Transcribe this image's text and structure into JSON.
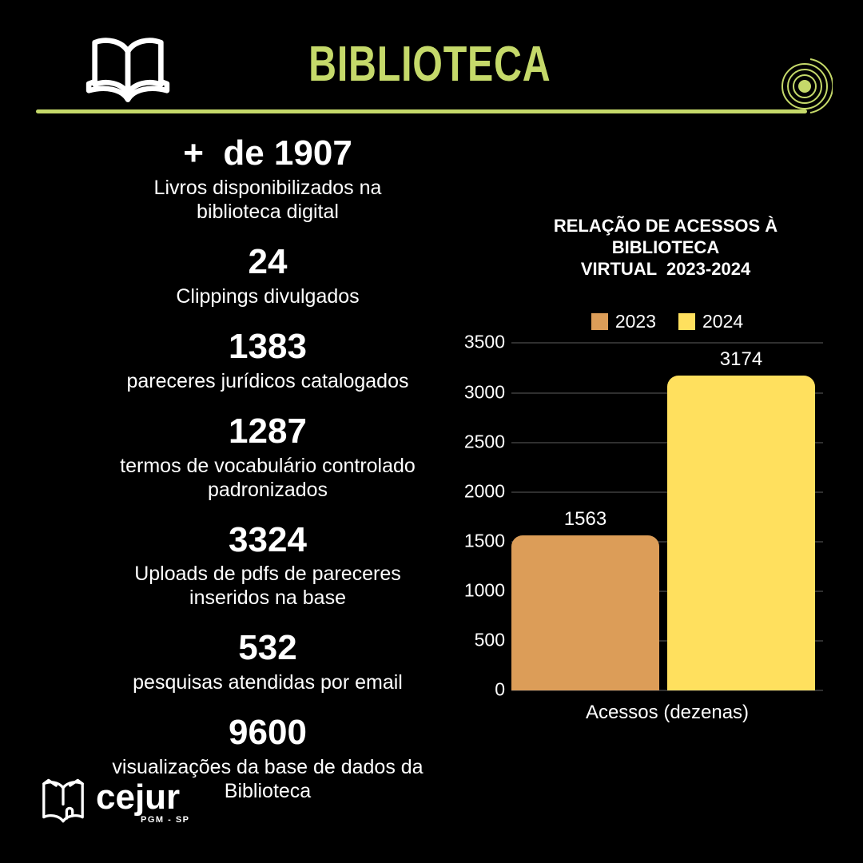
{
  "header": {
    "title": "BIBLIOTECA"
  },
  "stats": [
    {
      "value": "+  de 1907",
      "label": "Livros disponibilizados na\nbiblioteca digital"
    },
    {
      "value": "24",
      "label": "Clippings divulgados"
    },
    {
      "value": "1383",
      "label": "pareceres jurídicos catalogados"
    },
    {
      "value": "1287",
      "label": "termos de vocabulário controlado\npadronizados"
    },
    {
      "value": "3324",
      "label": "Uploads de pdfs de pareceres\ninseridos na base"
    },
    {
      "value": "532",
      "label": "pesquisas atendidas por email"
    },
    {
      "value": "9600",
      "label": "visualizações da base de dados da\nBiblioteca"
    }
  ],
  "chart_data": {
    "type": "bar",
    "title": "RELAÇÃO DE ACESSOS À BIBLIOTECA\nVIRTUAL  2023-2024",
    "categories": [
      "Acessos (dezenas)"
    ],
    "series": [
      {
        "name": "2023",
        "values": [
          1563
        ],
        "color": "#DC9D58"
      },
      {
        "name": "2024",
        "values": [
          3174
        ],
        "color": "#FFE05E"
      }
    ],
    "xlabel": "Acessos (dezenas)",
    "ylabel": "",
    "ylim": [
      0,
      3500
    ],
    "yticks": [
      3500,
      3000,
      2500,
      2000,
      1500,
      1000,
      500,
      0
    ],
    "grid": true,
    "legend_position": "top",
    "data_labels": true
  },
  "footer": {
    "brand": "cejur",
    "sub": "PGM - SP"
  },
  "icons": {
    "header_left": "open-book-icon",
    "header_right": "concentric-circles-icon",
    "footer": "cejur-book-logo-icon"
  },
  "colors": {
    "background": "#000000",
    "accent_green": "#C5D96A",
    "bar_2023": "#DC9D58",
    "bar_2024": "#FFE05E",
    "text": "#FFFFFF",
    "gridline": "#2F2F2F"
  }
}
